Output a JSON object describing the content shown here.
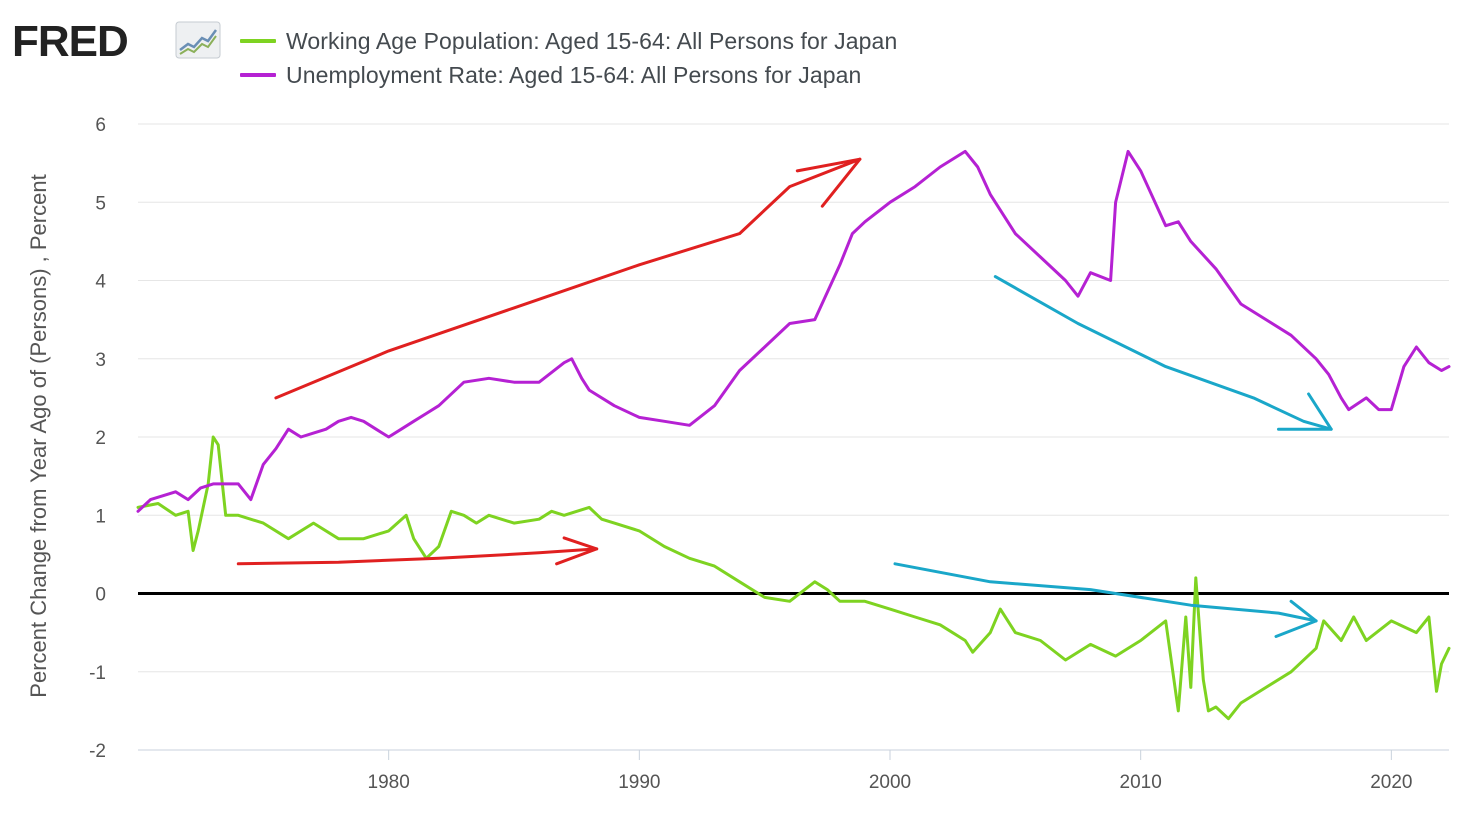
{
  "brand": {
    "name": "FRED",
    "icon": "trend-line-icon"
  },
  "chart_data": {
    "type": "line",
    "ylabel": "Percent Change from Year Ago of (Persons) , Percent",
    "ylim": [
      -2,
      6
    ],
    "xlim": [
      1970.0,
      2022.3
    ],
    "yticks": [
      -2,
      -1,
      0,
      1,
      2,
      3,
      4,
      5,
      6
    ],
    "xticks": [
      1980,
      1990,
      2000,
      2010,
      2020
    ],
    "grid": true,
    "legend_position": "top",
    "series": [
      {
        "name": "Working Age Population: Aged 15-64: All Persons for Japan",
        "color": "#7ed321",
        "x": [
          1970.0,
          1970.8,
          1971.5,
          1972.0,
          1972.2,
          1972.4,
          1972.8,
          1973.0,
          1973.2,
          1973.5,
          1974.0,
          1975.0,
          1976.0,
          1977.0,
          1978.0,
          1979.0,
          1980.0,
          1980.7,
          1981.0,
          1981.5,
          1982.0,
          1982.5,
          1983.0,
          1983.5,
          1984.0,
          1985.0,
          1986.0,
          1986.5,
          1987.0,
          1988.0,
          1988.5,
          1989.0,
          1990.0,
          1991.0,
          1992.0,
          1993.0,
          1994.0,
          1995.0,
          1996.0,
          1997.0,
          1997.5,
          1998.0,
          1999.0,
          2000.0,
          2001.0,
          2002.0,
          2003.0,
          2003.3,
          2004.0,
          2004.4,
          2005.0,
          2006.0,
          2007.0,
          2008.0,
          2009.0,
          2010.0,
          2011.0,
          2011.5,
          2011.8,
          2012.0,
          2012.2,
          2012.5,
          2012.7,
          2013.0,
          2013.5,
          2014.0,
          2015.0,
          2016.0,
          2017.0,
          2017.3,
          2018.0,
          2018.5,
          2019.0,
          2020.0,
          2021.0,
          2021.5,
          2021.8,
          2022.0,
          2022.3
        ],
        "values": [
          1.1,
          1.15,
          1.0,
          1.05,
          0.55,
          0.8,
          1.4,
          2.0,
          1.9,
          1.0,
          1.0,
          0.9,
          0.7,
          0.9,
          0.7,
          0.7,
          0.8,
          1.0,
          0.7,
          0.45,
          0.6,
          1.05,
          1.0,
          0.9,
          1.0,
          0.9,
          0.95,
          1.05,
          1.0,
          1.1,
          0.95,
          0.9,
          0.8,
          0.6,
          0.45,
          0.35,
          0.15,
          -0.05,
          -0.1,
          0.15,
          0.05,
          -0.1,
          -0.1,
          -0.2,
          -0.3,
          -0.4,
          -0.6,
          -0.75,
          -0.5,
          -0.2,
          -0.5,
          -0.6,
          -0.85,
          -0.65,
          -0.8,
          -0.6,
          -0.35,
          -1.5,
          -0.3,
          -1.2,
          0.2,
          -1.1,
          -1.5,
          -1.45,
          -1.6,
          -1.4,
          -1.2,
          -1.0,
          -0.7,
          -0.35,
          -0.6,
          -0.3,
          -0.6,
          -0.35,
          -0.5,
          -0.3,
          -1.25,
          -0.9,
          -0.7
        ]
      },
      {
        "name": "Unemployment Rate: Aged 15-64: All Persons for Japan",
        "color": "#b521d3",
        "x": [
          1970.0,
          1970.5,
          1971.0,
          1971.5,
          1972.0,
          1972.5,
          1973.0,
          1973.5,
          1974.0,
          1974.5,
          1975.0,
          1975.5,
          1976.0,
          1976.5,
          1977.0,
          1977.5,
          1978.0,
          1978.5,
          1979.0,
          1979.5,
          1980.0,
          1980.5,
          1981.0,
          1981.5,
          1982.0,
          1983.0,
          1984.0,
          1985.0,
          1986.0,
          1987.0,
          1987.3,
          1987.7,
          1988.0,
          1989.0,
          1990.0,
          1991.0,
          1992.0,
          1993.0,
          1994.0,
          1995.0,
          1996.0,
          1997.0,
          1998.0,
          1998.5,
          1999.0,
          2000.0,
          2001.0,
          2002.0,
          2003.0,
          2003.5,
          2004.0,
          2005.0,
          2006.0,
          2007.0,
          2007.5,
          2008.0,
          2008.8,
          2009.0,
          2009.5,
          2010.0,
          2011.0,
          2011.5,
          2012.0,
          2013.0,
          2014.0,
          2015.0,
          2016.0,
          2017.0,
          2017.5,
          2018.0,
          2018.3,
          2019.0,
          2019.5,
          2020.0,
          2020.5,
          2021.0,
          2021.5,
          2022.0,
          2022.3
        ],
        "values": [
          1.05,
          1.2,
          1.25,
          1.3,
          1.2,
          1.35,
          1.4,
          1.4,
          1.4,
          1.2,
          1.65,
          1.85,
          2.1,
          2.0,
          2.05,
          2.1,
          2.2,
          2.25,
          2.2,
          2.1,
          2.0,
          2.1,
          2.2,
          2.3,
          2.4,
          2.7,
          2.75,
          2.7,
          2.7,
          2.95,
          3.0,
          2.75,
          2.6,
          2.4,
          2.25,
          2.2,
          2.15,
          2.4,
          2.85,
          3.15,
          3.45,
          3.5,
          4.2,
          4.6,
          4.75,
          5.0,
          5.2,
          5.45,
          5.65,
          5.45,
          5.1,
          4.6,
          4.3,
          4.0,
          3.8,
          4.1,
          4.0,
          5.0,
          5.65,
          5.4,
          4.7,
          4.75,
          4.5,
          4.15,
          3.7,
          3.5,
          3.3,
          3.0,
          2.8,
          2.5,
          2.35,
          2.5,
          2.35,
          2.35,
          2.9,
          3.15,
          2.95,
          2.85,
          2.9
        ]
      }
    ]
  },
  "annotations": [
    {
      "color": "#e02020",
      "target": "unemployment-rate",
      "direction": "up"
    },
    {
      "color": "#e02020",
      "target": "working-age-population",
      "direction": "flat"
    },
    {
      "color": "#1aa7c9",
      "target": "unemployment-rate",
      "direction": "down"
    },
    {
      "color": "#1aa7c9",
      "target": "working-age-population",
      "direction": "down"
    }
  ]
}
